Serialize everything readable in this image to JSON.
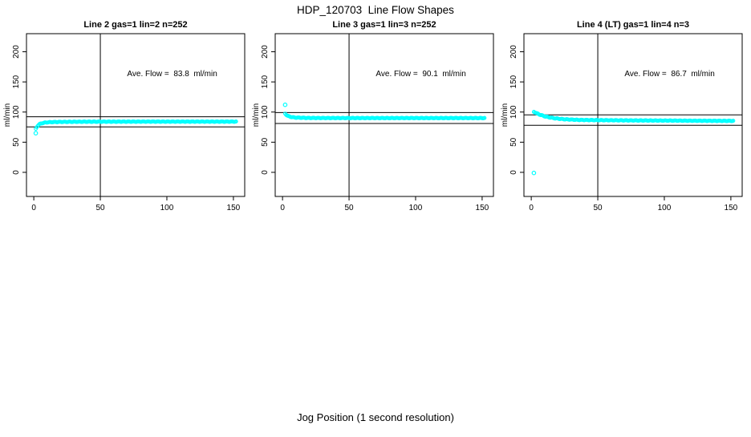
{
  "figure": {
    "title": "HDP_120703  Line Flow Shapes",
    "xlabel": "Jog Position (1 second resolution)"
  },
  "colors": {
    "points": "#00FFFF",
    "axis": "#000000",
    "background": "#FFFFFF"
  },
  "chart_data": {
    "type": "scatter",
    "title": "HDP_120703  Line Flow Shapes",
    "xlabel": "Jog Position (1 second resolution)",
    "ylabel": "ml/min",
    "x_ticks": [
      0,
      50,
      100,
      150
    ],
    "y_ticks": [
      0,
      50,
      100,
      150,
      200
    ],
    "xlim": [
      -5.5,
      158.5
    ],
    "ylim": [
      -40,
      230
    ],
    "grid": false,
    "vline_x": 50,
    "legend": "none",
    "panels": [
      {
        "title": "Line 2 gas=1 lin=2 n=252",
        "annotation": "Ave. Flow =  83.8  ml/min",
        "ave_flow": 83.8,
        "n": 252,
        "ref_lines": [
          92.2,
          75.4
        ],
        "outliers": [
          [
            1.5,
            65
          ]
        ],
        "curve": [
          [
            1.5,
            72
          ],
          [
            2,
            74.5
          ],
          [
            3,
            77.5
          ],
          [
            4,
            79.5
          ],
          [
            6,
            81.5
          ],
          [
            8,
            82.3
          ],
          [
            10,
            82.9
          ],
          [
            15,
            83.4
          ],
          [
            20,
            83.6
          ],
          [
            30,
            83.8
          ],
          [
            50,
            84.0
          ],
          [
            80,
            84.1
          ],
          [
            120,
            84.1
          ],
          [
            152,
            84.1
          ]
        ]
      },
      {
        "title": "Line 3 gas=1 lin=3 n=252",
        "annotation": "Ave. Flow =  90.1  ml/min",
        "ave_flow": 90.1,
        "n": 252,
        "ref_lines": [
          99.1,
          81.1
        ],
        "outliers": [
          [
            2,
            112
          ]
        ],
        "curve": [
          [
            2,
            97.5
          ],
          [
            3,
            95.0
          ],
          [
            4,
            93.5
          ],
          [
            6,
            92.0
          ],
          [
            8,
            91.2
          ],
          [
            10,
            90.8
          ],
          [
            15,
            90.4
          ],
          [
            20,
            90.2
          ],
          [
            30,
            90.1
          ],
          [
            50,
            90.0
          ],
          [
            100,
            90.0
          ],
          [
            152,
            90.0
          ]
        ]
      },
      {
        "title": "Line 4 (LT) gas=1 lin=4 n=3",
        "annotation": "Ave. Flow =  86.7  ml/min",
        "ave_flow": 86.7,
        "n": 3,
        "ref_lines": [
          95.4,
          78.0
        ],
        "outliers": [
          [
            2,
            -1
          ]
        ],
        "curve": [
          [
            2,
            100.5
          ],
          [
            4,
            98.0
          ],
          [
            6,
            96.0
          ],
          [
            8,
            94.5
          ],
          [
            10,
            93.0
          ],
          [
            14,
            91.0
          ],
          [
            18,
            89.5
          ],
          [
            25,
            88.0
          ],
          [
            35,
            87.0
          ],
          [
            50,
            86.5
          ],
          [
            80,
            86.0
          ],
          [
            110,
            85.7
          ],
          [
            152,
            85.3
          ]
        ]
      }
    ]
  }
}
